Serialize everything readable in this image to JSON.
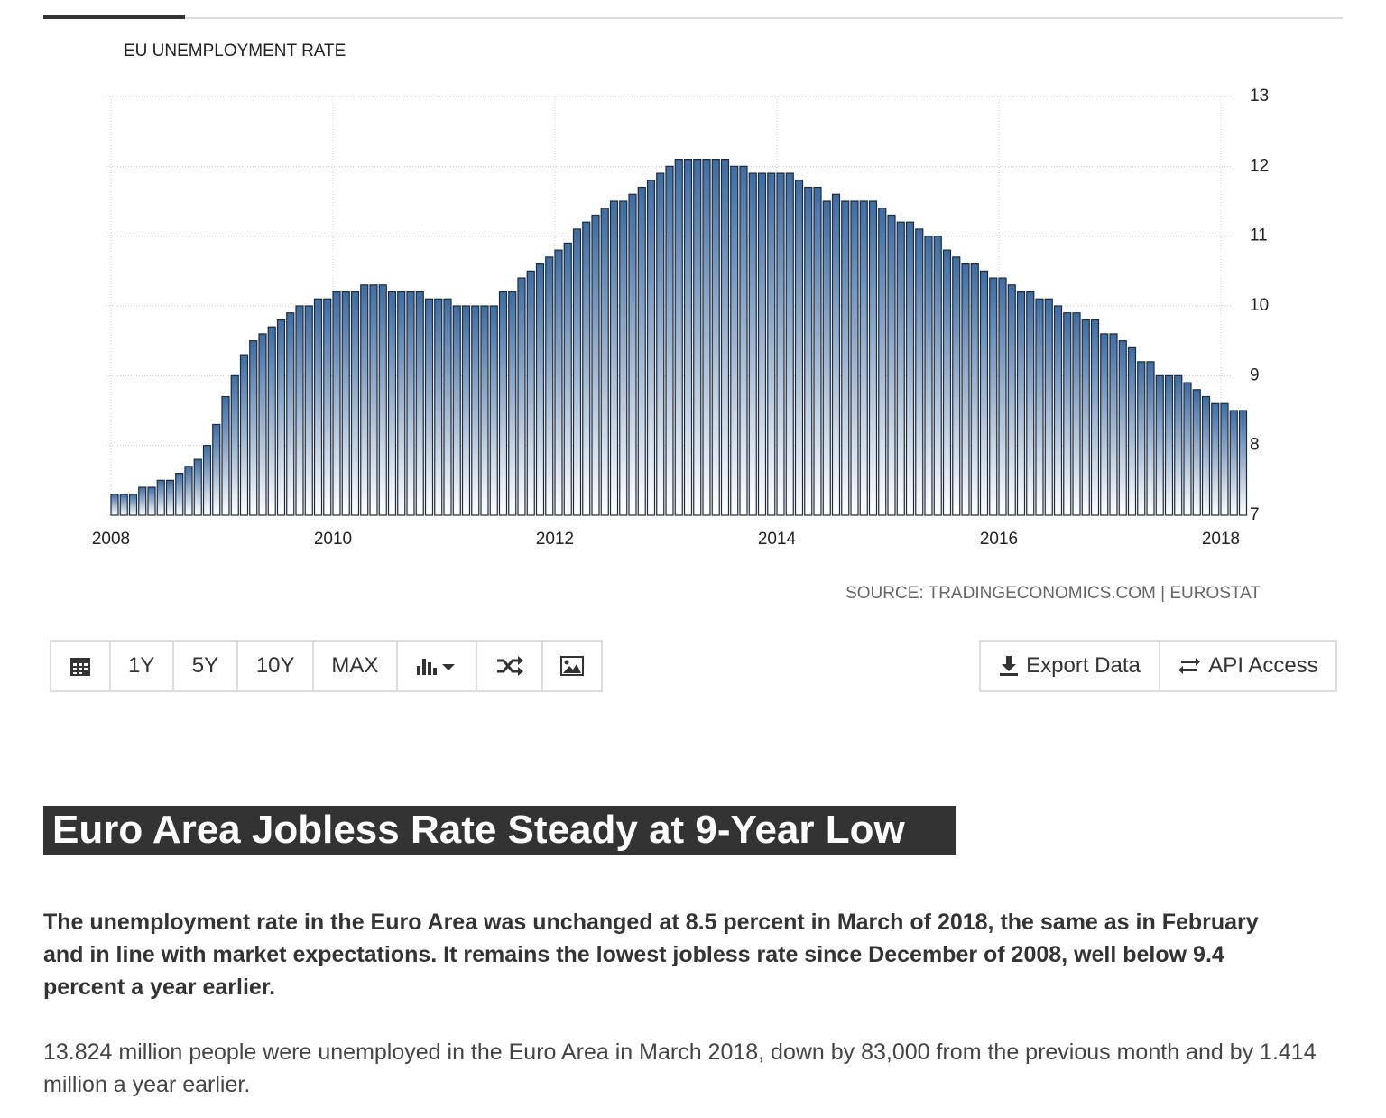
{
  "chart_data": {
    "type": "bar",
    "title": "EU UNEMPLOYMENT RATE",
    "source": "SOURCE: TRADINGECONOMICS.COM | EUROSTAT",
    "categories": [
      "2008",
      null,
      null,
      null,
      null,
      null,
      null,
      null,
      null,
      null,
      null,
      null,
      null,
      null,
      null,
      null,
      null,
      null,
      null,
      null,
      null,
      null,
      null,
      null,
      "2010",
      null,
      null,
      null,
      null,
      null,
      null,
      null,
      null,
      null,
      null,
      null,
      null,
      null,
      null,
      null,
      null,
      null,
      null,
      null,
      null,
      null,
      null,
      null,
      "2012",
      null,
      null,
      null,
      null,
      null,
      null,
      null,
      null,
      null,
      null,
      null,
      null,
      null,
      null,
      null,
      null,
      null,
      null,
      null,
      null,
      null,
      null,
      null,
      "2014",
      null,
      null,
      null,
      null,
      null,
      null,
      null,
      null,
      null,
      null,
      null,
      null,
      null,
      null,
      null,
      null,
      null,
      null,
      null,
      null,
      null,
      null,
      null,
      "2016",
      null,
      null,
      null,
      null,
      null,
      null,
      null,
      null,
      null,
      null,
      null,
      null,
      null,
      null,
      null,
      null,
      null,
      null,
      null,
      null,
      null,
      null,
      null,
      "2018",
      null,
      null
    ],
    "values": [
      7.3,
      7.3,
      7.3,
      7.4,
      7.4,
      7.5,
      7.5,
      7.6,
      7.7,
      7.8,
      8.0,
      8.3,
      8.7,
      9.0,
      9.3,
      9.5,
      9.6,
      9.7,
      9.8,
      9.9,
      10.0,
      10.0,
      10.1,
      10.1,
      10.2,
      10.2,
      10.2,
      10.3,
      10.3,
      10.3,
      10.2,
      10.2,
      10.2,
      10.2,
      10.1,
      10.1,
      10.1,
      10.0,
      10.0,
      10.0,
      10.0,
      10.0,
      10.2,
      10.2,
      10.4,
      10.5,
      10.6,
      10.7,
      10.8,
      10.9,
      11.1,
      11.2,
      11.3,
      11.4,
      11.5,
      11.5,
      11.6,
      11.7,
      11.8,
      11.9,
      12.0,
      12.1,
      12.1,
      12.1,
      12.1,
      12.1,
      12.1,
      12.0,
      12.0,
      11.9,
      11.9,
      11.9,
      11.9,
      11.9,
      11.8,
      11.7,
      11.7,
      11.5,
      11.6,
      11.5,
      11.5,
      11.5,
      11.5,
      11.4,
      11.3,
      11.2,
      11.2,
      11.1,
      11.0,
      11.0,
      10.8,
      10.7,
      10.6,
      10.6,
      10.5,
      10.4,
      10.4,
      10.3,
      10.2,
      10.2,
      10.1,
      10.1,
      10.0,
      9.9,
      9.9,
      9.8,
      9.8,
      9.6,
      9.6,
      9.5,
      9.4,
      9.2,
      9.2,
      9.0,
      9.0,
      9.0,
      8.9,
      8.8,
      8.7,
      8.6,
      8.6,
      8.5,
      8.5
    ],
    "color": "#3d6da5",
    "ylim": [
      7,
      13
    ],
    "yticks": [
      7,
      8,
      9,
      10,
      11,
      12,
      13
    ],
    "grid": true
  },
  "toolbar": {
    "ranges": [
      "1Y",
      "5Y",
      "10Y",
      "MAX"
    ],
    "actions": [
      "Export Data",
      "API Access"
    ]
  },
  "article": {
    "headline": "Euro Area Jobless Rate Steady at 9-Year Low",
    "lead": "The unemployment rate in the Euro Area was unchanged at 8.5 percent in March of 2018, the same as in February and in line with market expectations. It remains the lowest jobless rate since December of 2008, well below 9.4 percent a year earlier.",
    "body": "13.824 million people were unemployed in the Euro Area in March 2018, down by 83,000 from the previous month and by 1.414 million a year earlier."
  }
}
